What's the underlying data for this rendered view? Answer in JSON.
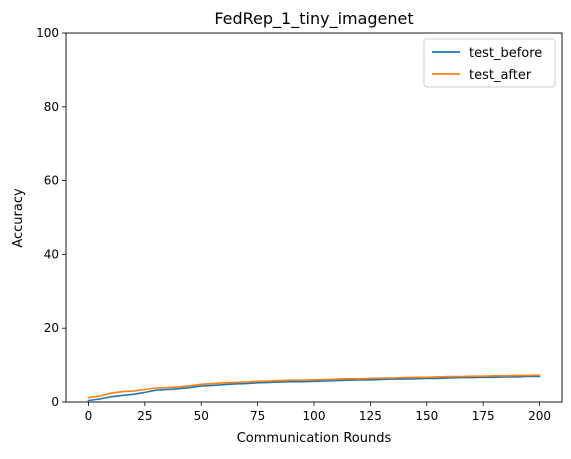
{
  "chart_data": {
    "type": "line",
    "title": "FedRep_1_tiny_imagenet",
    "xlabel": "Communication Rounds",
    "ylabel": "Accuracy",
    "xlim": [
      -9.95,
      209.95
    ],
    "ylim": [
      0,
      100
    ],
    "xticks": [
      0,
      25,
      50,
      75,
      100,
      125,
      150,
      175,
      200
    ],
    "yticks": [
      0,
      20,
      40,
      60,
      80,
      100
    ],
    "grid": false,
    "legend": "top-right",
    "x": [
      0,
      5,
      10,
      15,
      20,
      25,
      30,
      35,
      40,
      45,
      50,
      55,
      60,
      65,
      70,
      75,
      80,
      85,
      90,
      95,
      100,
      105,
      110,
      115,
      120,
      125,
      130,
      135,
      140,
      145,
      150,
      155,
      160,
      165,
      170,
      175,
      180,
      185,
      190,
      195,
      200
    ],
    "series": [
      {
        "name": "test_before",
        "color": "#1f77b4",
        "values": [
          0.4,
          0.8,
          1.4,
          1.8,
          2.1,
          2.6,
          3.2,
          3.4,
          3.6,
          3.9,
          4.3,
          4.5,
          4.7,
          4.9,
          5.0,
          5.2,
          5.3,
          5.4,
          5.5,
          5.5,
          5.6,
          5.7,
          5.8,
          5.9,
          6.0,
          6.0,
          6.1,
          6.2,
          6.2,
          6.3,
          6.4,
          6.4,
          6.5,
          6.6,
          6.6,
          6.7,
          6.7,
          6.8,
          6.8,
          6.9,
          6.9
        ]
      },
      {
        "name": "test_after",
        "color": "#ff7f0e",
        "values": [
          1.2,
          1.6,
          2.4,
          2.8,
          3.0,
          3.4,
          3.8,
          3.9,
          4.1,
          4.4,
          4.8,
          5.0,
          5.2,
          5.3,
          5.4,
          5.6,
          5.7,
          5.8,
          5.9,
          5.9,
          6.0,
          6.1,
          6.2,
          6.3,
          6.3,
          6.4,
          6.5,
          6.5,
          6.6,
          6.7,
          6.7,
          6.8,
          6.9,
          6.9,
          7.0,
          7.0,
          7.1,
          7.1,
          7.2,
          7.2,
          7.3
        ]
      }
    ]
  }
}
